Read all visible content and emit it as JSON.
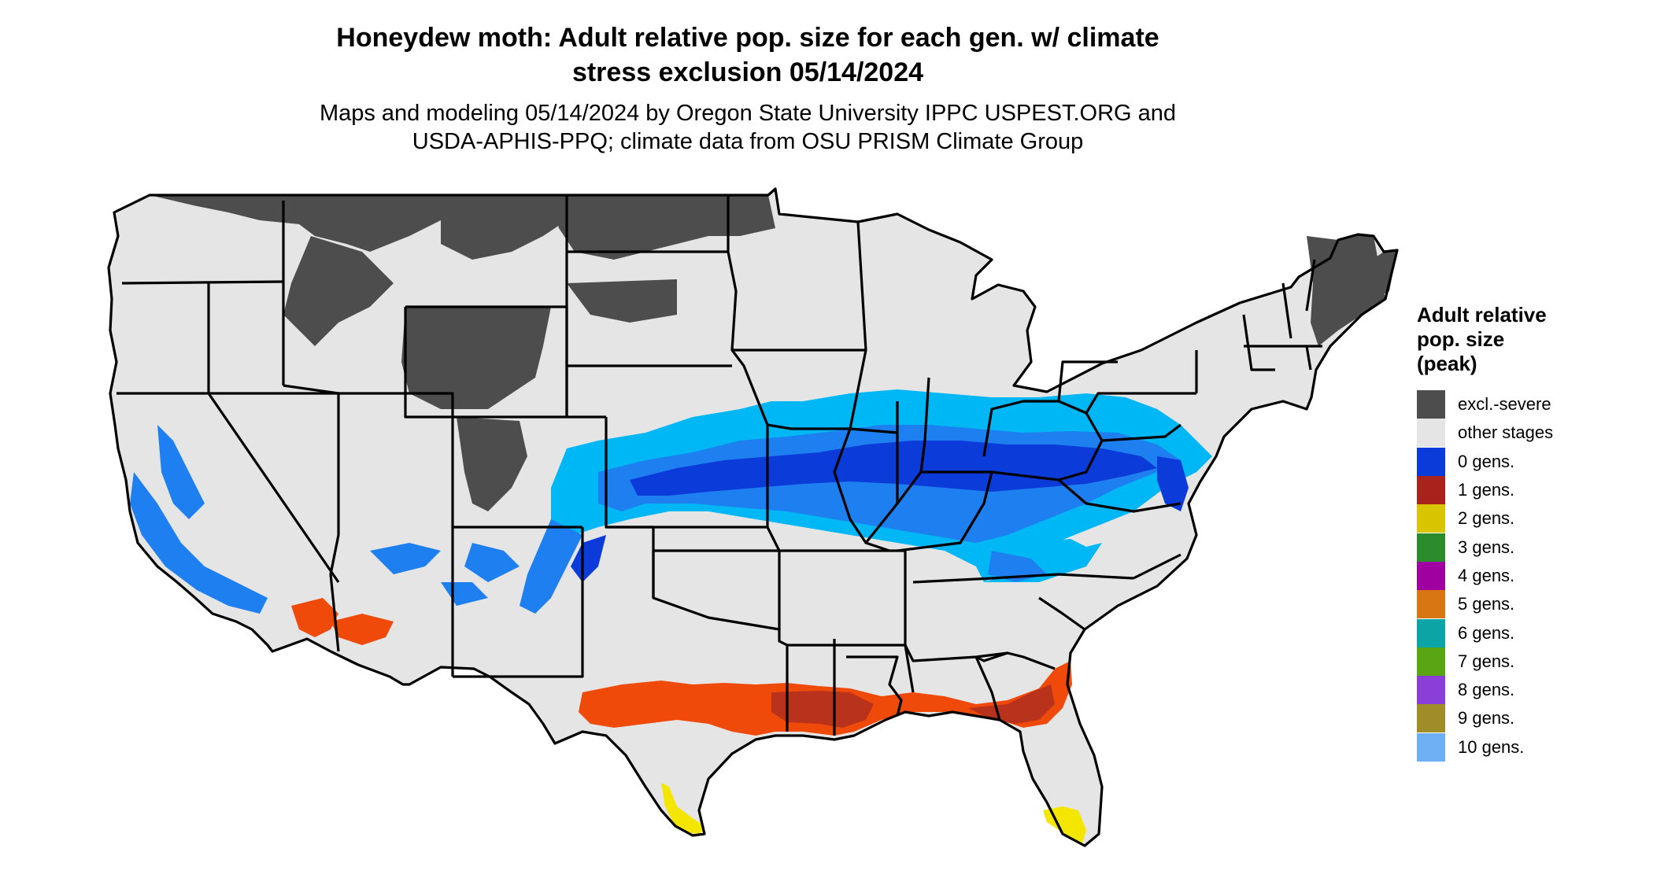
{
  "header": {
    "title_line1": "Honeydew moth: Adult relative pop. size for each gen. w/ climate",
    "title_line2": "stress exclusion 05/14/2024",
    "subtitle_line1": "Maps and modeling 05/14/2024 by Oregon State University IPPC USPEST.ORG and",
    "subtitle_line2": "USDA-APHIS-PPQ; climate data from OSU PRISM Climate Group"
  },
  "legend": {
    "title_lines": [
      "Adult relative",
      "pop. size",
      "(peak)"
    ],
    "items": [
      {
        "label": "excl.-severe",
        "color": "#4d4d4d"
      },
      {
        "label": "other stages",
        "color": "#e5e5e5"
      },
      {
        "label": "0 gens.",
        "color": "#0b3bd8"
      },
      {
        "label": "1 gens.",
        "color": "#a8231c"
      },
      {
        "label": "2 gens.",
        "color": "#d9c400"
      },
      {
        "label": "3 gens.",
        "color": "#2a8c2a"
      },
      {
        "label": "4 gens.",
        "color": "#a000a0"
      },
      {
        "label": "5 gens.",
        "color": "#d97614"
      },
      {
        "label": "6 gens.",
        "color": "#0ba5a5"
      },
      {
        "label": "7 gens.",
        "color": "#5aa514"
      },
      {
        "label": "8 gens.",
        "color": "#8a3fd9"
      },
      {
        "label": "9 gens.",
        "color": "#a08c28"
      },
      {
        "label": "10 gens.",
        "color": "#6fb0f5"
      }
    ]
  },
  "map": {
    "colors": {
      "land": "#e5e5e5",
      "excluded": "#4d4d4d",
      "gen0_light": "#00b7f5",
      "gen0_mid": "#1e7ff0",
      "gen0_dark": "#0b3bd8",
      "gen1_orange": "#f04a0a",
      "gen1_red": "#b8321c",
      "gen2": "#f5e600",
      "border": "#000000"
    }
  }
}
